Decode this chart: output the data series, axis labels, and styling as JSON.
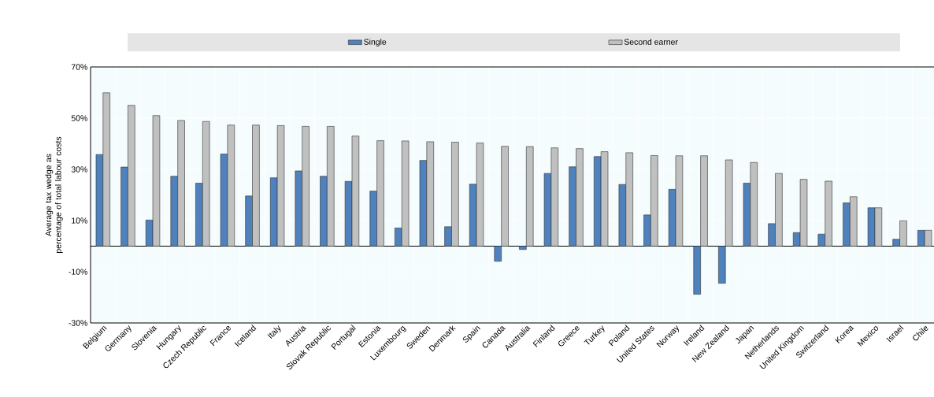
{
  "chart_data": {
    "type": "bar",
    "ylabel": "Average tax wedge as percentage of total labour costs",
    "categories": [
      "Belgium",
      "Germany",
      "Slovenia",
      "Hungary",
      "Czech Republic",
      "France",
      "Iceland",
      "Italy",
      "Austria",
      "Slovak Republic",
      "Portugal",
      "Estonia",
      "Luxembourg",
      "Sweden",
      "Denmark",
      "Spain",
      "Canada",
      "Australia",
      "Finland",
      "Greece",
      "Turkey",
      "Poland",
      "United States",
      "Norway",
      "Ireland",
      "New Zealand",
      "Japan",
      "Netherlands",
      "United Kingdom",
      "Switzerland",
      "Korea",
      "Mexico",
      "Israel",
      "Chile"
    ],
    "series": [
      {
        "name": "Single",
        "color": "#4f81bd",
        "values": [
          35.8,
          30.9,
          10.2,
          27.3,
          24.6,
          36.0,
          19.6,
          26.7,
          29.4,
          27.3,
          25.3,
          21.5,
          7.1,
          33.5,
          7.6,
          24.2,
          -5.9,
          -1.3,
          28.4,
          31.0,
          35.0,
          24.1,
          12.2,
          22.2,
          -18.8,
          -14.5,
          24.6,
          8.8,
          5.3,
          4.7,
          16.9,
          15.0,
          2.7,
          6.2
        ]
      },
      {
        "name": "Second earner",
        "color": "#c0c0c0",
        "values": [
          59.9,
          55.0,
          51.0,
          49.1,
          48.7,
          47.3,
          47.3,
          47.1,
          46.8,
          46.8,
          43.0,
          41.2,
          41.1,
          40.8,
          40.6,
          40.3,
          39.0,
          38.9,
          38.4,
          38.1,
          36.9,
          36.5,
          35.4,
          35.3,
          35.3,
          33.7,
          32.7,
          28.4,
          26.1,
          25.4,
          19.3,
          15.0,
          9.9,
          6.2
        ]
      }
    ],
    "ylim": [
      -30,
      70
    ],
    "yticks": [
      {
        "value": -30,
        "label": "-30%"
      },
      {
        "value": -10,
        "label": "-10%"
      },
      {
        "value": 10,
        "label": "10%"
      },
      {
        "value": 30,
        "label": "30%"
      },
      {
        "value": 50,
        "label": "50%"
      },
      {
        "value": 70,
        "label": "70%"
      }
    ],
    "grid": true,
    "legend": "top"
  }
}
